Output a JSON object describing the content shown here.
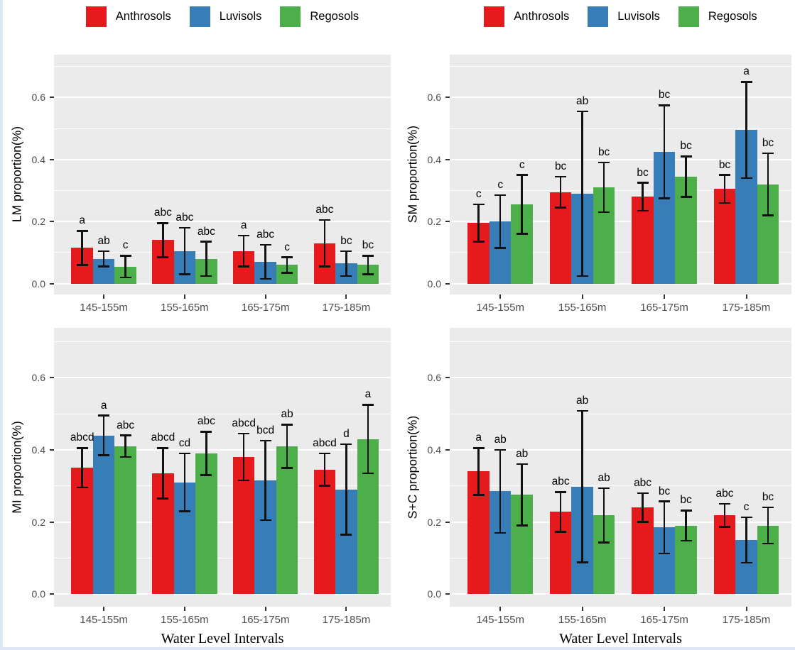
{
  "legend": {
    "items": [
      {
        "label": "Anthrosols",
        "color": "#e41a1c"
      },
      {
        "label": "Luvisols",
        "color": "#377eb8"
      },
      {
        "label": "Regosols",
        "color": "#4daf4a"
      }
    ]
  },
  "x_axis_title": "Water Level Intervals",
  "categories": [
    "145-155m",
    "155-165m",
    "165-175m",
    "175-185m"
  ],
  "y_axis": {
    "tick_labels": [
      "0.0",
      "0.2",
      "0.4",
      "0.6"
    ],
    "tick_values": [
      0,
      0.2,
      0.4,
      0.6
    ],
    "minor_values": [
      0.1,
      0.3,
      0.5,
      0.7
    ],
    "ymin": -0.035,
    "ymax": 0.738
  },
  "colors": {
    "panel_bg": "#ebebeb",
    "grid": "#ffffff",
    "tick_text": "#4d4d4d",
    "error_bar": "#111111",
    "series": [
      "#e41a1c",
      "#377eb8",
      "#4daf4a"
    ]
  },
  "chart_data": [
    {
      "type": "bar",
      "ylabel": "LM proportion(%)",
      "categories": [
        "145-155m",
        "155-165m",
        "165-175m",
        "175-185m"
      ],
      "series": [
        {
          "name": "Anthrosols",
          "values": [
            0.115,
            0.14,
            0.105,
            0.13
          ],
          "errors": [
            0.055,
            0.055,
            0.05,
            0.075
          ],
          "letters": [
            "a",
            "abc",
            "a",
            "abc"
          ]
        },
        {
          "name": "Luvisols",
          "values": [
            0.08,
            0.105,
            0.07,
            0.065
          ],
          "errors": [
            0.025,
            0.075,
            0.055,
            0.04
          ],
          "letters": [
            "ab",
            "abc",
            "abc",
            "bc"
          ]
        },
        {
          "name": "Regosols",
          "values": [
            0.055,
            0.08,
            0.06,
            0.06
          ],
          "errors": [
            0.035,
            0.055,
            0.025,
            0.03
          ],
          "letters": [
            "c",
            "abc",
            "c",
            "bc"
          ]
        }
      ]
    },
    {
      "type": "bar",
      "ylabel": "SM proportion(%)",
      "categories": [
        "145-155m",
        "155-165m",
        "165-175m",
        "175-185m"
      ],
      "series": [
        {
          "name": "Anthrosols",
          "values": [
            0.195,
            0.295,
            0.28,
            0.305
          ],
          "errors": [
            0.06,
            0.05,
            0.045,
            0.045
          ],
          "letters": [
            "c",
            "bc",
            "bc",
            "bc"
          ]
        },
        {
          "name": "Luvisols",
          "values": [
            0.2,
            0.29,
            0.425,
            0.495
          ],
          "errors": [
            0.085,
            0.265,
            0.15,
            0.155
          ],
          "letters": [
            "c",
            "ab",
            "bc",
            "a"
          ]
        },
        {
          "name": "Regosols",
          "values": [
            0.255,
            0.31,
            0.345,
            0.32
          ],
          "errors": [
            0.095,
            0.08,
            0.065,
            0.1
          ],
          "letters": [
            "c",
            "bc",
            "bc",
            "bc"
          ]
        }
      ]
    },
    {
      "type": "bar",
      "ylabel": "MI proportion(%)",
      "categories": [
        "145-155m",
        "155-165m",
        "165-175m",
        "175-185m"
      ],
      "series": [
        {
          "name": "Anthrosols",
          "values": [
            0.35,
            0.335,
            0.38,
            0.345
          ],
          "errors": [
            0.055,
            0.07,
            0.065,
            0.045
          ],
          "letters": [
            "abcd",
            "abcd",
            "abcd",
            "abcd"
          ]
        },
        {
          "name": "Luvisols",
          "values": [
            0.44,
            0.31,
            0.315,
            0.29
          ],
          "errors": [
            0.055,
            0.08,
            0.11,
            0.125
          ],
          "letters": [
            "a",
            "cd",
            "bcd",
            "d"
          ]
        },
        {
          "name": "Regosols",
          "values": [
            0.41,
            0.39,
            0.41,
            0.43
          ],
          "errors": [
            0.03,
            0.06,
            0.06,
            0.095
          ],
          "letters": [
            "abc",
            "abc",
            "ab",
            "a"
          ]
        }
      ]
    },
    {
      "type": "bar",
      "ylabel": "S+C proportion(%)",
      "categories": [
        "145-155m",
        "155-165m",
        "165-175m",
        "175-185m"
      ],
      "series": [
        {
          "name": "Anthrosols",
          "values": [
            0.34,
            0.228,
            0.24,
            0.218
          ],
          "errors": [
            0.065,
            0.055,
            0.04,
            0.032
          ],
          "letters": [
            "a",
            "abc",
            "abc",
            "abc"
          ]
        },
        {
          "name": "Luvisols",
          "values": [
            0.285,
            0.298,
            0.185,
            0.15
          ],
          "errors": [
            0.115,
            0.21,
            0.072,
            0.063
          ],
          "letters": [
            "ab",
            "ab",
            "bc",
            "c"
          ]
        },
        {
          "name": "Regosols",
          "values": [
            0.275,
            0.218,
            0.19,
            0.19
          ],
          "errors": [
            0.085,
            0.075,
            0.042,
            0.05
          ],
          "letters": [
            "ab",
            "ab",
            "bc",
            "bc"
          ]
        }
      ]
    }
  ]
}
